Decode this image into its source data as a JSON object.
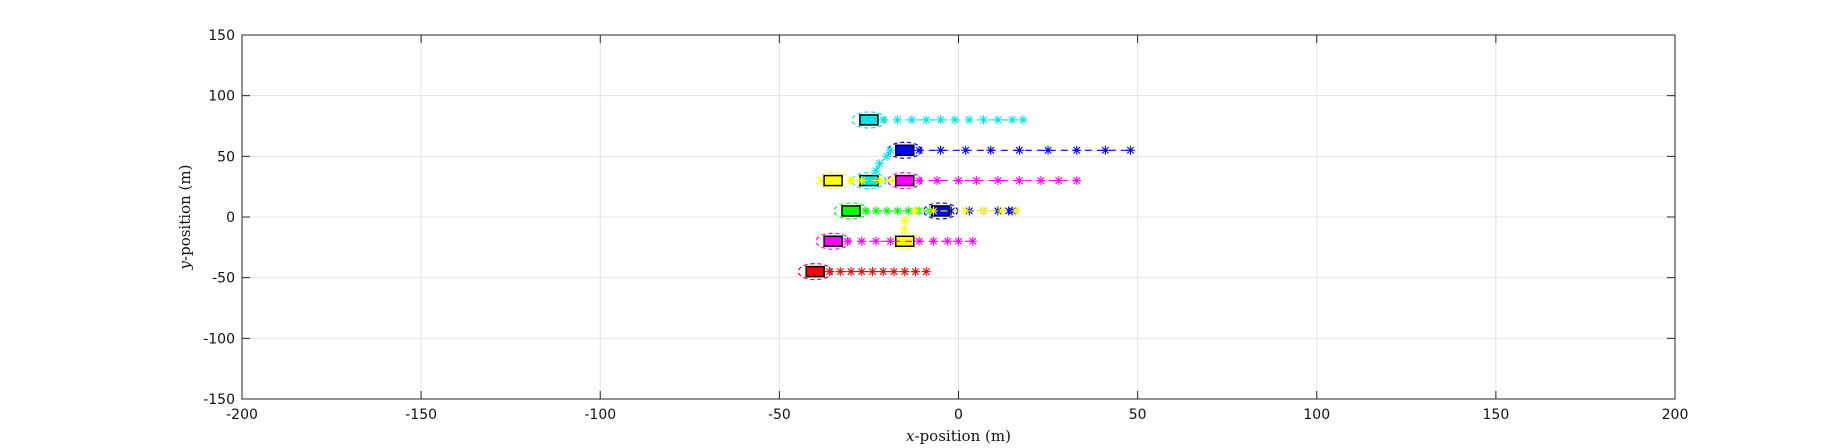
{
  "chart_data": {
    "type": "scatter",
    "title": "",
    "xlabel_var": "x",
    "xlabel_rest": "-position (m)",
    "ylabel_var": "y",
    "ylabel_rest": "-position (m)",
    "xlim": [
      -200,
      200
    ],
    "ylim": [
      -150,
      150
    ],
    "xticks": [
      -200,
      -150,
      -100,
      -50,
      0,
      50,
      100,
      150,
      200
    ],
    "yticks": [
      150,
      100,
      50,
      0,
      -50,
      -100,
      -150
    ],
    "grid": true,
    "legend": "none",
    "series": [
      {
        "color": "#00e5e5",
        "vehicle": [
          -25,
          80
        ],
        "trajectory": [
          [
            -21,
            80
          ],
          [
            -17,
            80
          ],
          [
            -13,
            80
          ],
          [
            -9,
            80
          ],
          [
            -5,
            80
          ],
          [
            -1,
            80
          ],
          [
            3,
            80
          ],
          [
            7,
            80
          ],
          [
            11,
            80
          ],
          [
            15,
            80
          ],
          [
            18,
            80
          ]
        ]
      },
      {
        "color": "#0000ff",
        "vehicle": [
          -15,
          55
        ],
        "trajectory": [
          [
            -11,
            55
          ],
          [
            -5,
            55
          ],
          [
            2,
            55
          ],
          [
            9,
            55
          ],
          [
            17,
            55
          ],
          [
            25,
            55
          ],
          [
            33,
            55
          ],
          [
            41,
            55
          ],
          [
            48,
            55
          ]
        ]
      },
      {
        "color": "#00e5e5",
        "vehicle": [
          -25,
          30
        ],
        "trajectory": [
          [
            -23,
            38
          ],
          [
            -22,
            44
          ],
          [
            -20,
            50
          ],
          [
            -19,
            55
          ]
        ]
      },
      {
        "color": "#ffff00",
        "vehicle": [
          -35,
          30
        ],
        "trajectory": [
          [
            -38,
            30
          ],
          [
            -30,
            30
          ],
          [
            -27,
            30
          ],
          [
            -22,
            30
          ],
          [
            -18,
            30
          ]
        ]
      },
      {
        "color": "#ff00ff",
        "vehicle": [
          -15,
          30
        ],
        "trajectory": [
          [
            -11,
            30
          ],
          [
            -6,
            30
          ],
          [
            0,
            30
          ],
          [
            5,
            30
          ],
          [
            11,
            30
          ],
          [
            17,
            30
          ],
          [
            23,
            30
          ],
          [
            28,
            30
          ],
          [
            33,
            30
          ]
        ]
      },
      {
        "color": "#00ff00",
        "vehicle": [
          -30,
          5
        ],
        "trajectory": [
          [
            -26,
            5
          ],
          [
            -23,
            5
          ],
          [
            -20,
            5
          ],
          [
            -17,
            5
          ],
          [
            -14,
            5
          ],
          [
            -11,
            5
          ],
          [
            -8,
            5
          ],
          [
            -5,
            5
          ]
        ]
      },
      {
        "color": "#0000ff",
        "vehicle": [
          -5,
          5
        ],
        "trajectory": [
          [
            -2,
            5
          ],
          [
            3,
            5
          ],
          [
            7,
            5
          ],
          [
            11,
            5
          ],
          [
            14,
            5
          ],
          [
            15,
            5
          ],
          [
            16,
            5
          ]
        ]
      },
      {
        "color": "#ffff00",
        "vehicle": [
          -15,
          -20
        ],
        "trajectory": [
          [
            -15,
            -10
          ],
          [
            -15,
            -3
          ],
          [
            -12,
            5
          ],
          [
            -7,
            5
          ],
          [
            2,
            5
          ],
          [
            7,
            5
          ],
          [
            12,
            5
          ],
          [
            16,
            5
          ]
        ]
      },
      {
        "color": "#ff00ff",
        "vehicle": [
          -35,
          -20
        ],
        "trajectory": [
          [
            -31,
            -20
          ],
          [
            -27,
            -20
          ],
          [
            -23,
            -20
          ],
          [
            -19,
            -20
          ],
          [
            -11,
            -20
          ],
          [
            -7,
            -20
          ],
          [
            -3,
            -20
          ],
          [
            0,
            -20
          ],
          [
            4,
            -20
          ]
        ]
      },
      {
        "color": "#ff0000",
        "vehicle": [
          -40,
          -45
        ],
        "trajectory": [
          [
            -36,
            -45
          ],
          [
            -33,
            -45
          ],
          [
            -30,
            -45
          ],
          [
            -27,
            -45
          ],
          [
            -24,
            -45
          ],
          [
            -21,
            -45
          ],
          [
            -18,
            -45
          ],
          [
            -15,
            -45
          ],
          [
            -12,
            -45
          ],
          [
            -9,
            -45
          ]
        ]
      }
    ]
  }
}
